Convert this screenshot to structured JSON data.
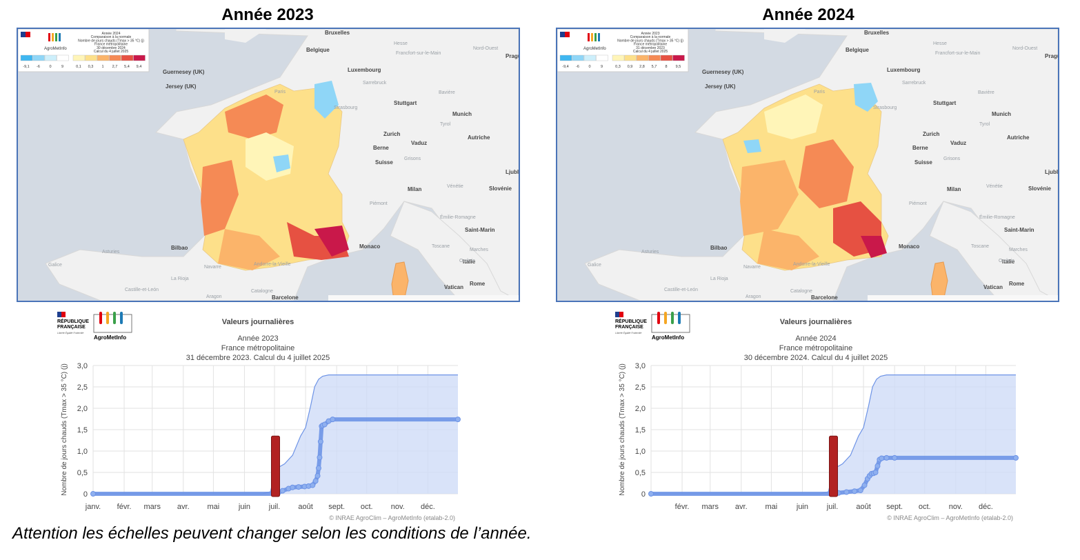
{
  "figure": {
    "footnote": "Attention les échelles peuvent changer selon les conditions de l’année."
  },
  "panels": [
    {
      "heading": "Année 2023",
      "map": {
        "legend_title_lines": [
          "Année 2024",
          "Comparaison à la normale",
          "Nombre de jours chauds (Tmax > 35 °C) (j)",
          "France métropolitaine",
          "30 décembre 2024",
          "Calcul du 4 juillet 2025"
        ],
        "legend_values": [
          "-9,1",
          "-6",
          "0",
          "9",
          "0,1",
          "0,3",
          "1",
          "2,7",
          "5,4",
          "9,4"
        ],
        "legend_colors": [
          "#3fb6f0",
          "#8fd6f7",
          "#cdeffb",
          "#ffffff",
          "#fff5b8",
          "#fde08a",
          "#fbb46a",
          "#f58a55",
          "#e65142",
          "#c9184a"
        ],
        "place_labels": [
          "Bruxelles",
          "Belgique",
          "Luxembourg",
          "Guernesey (UK)",
          "Jersey (UK)",
          "Paris",
          "Stuttgart",
          "Munich",
          "Zurich",
          "Berne",
          "Vaduz",
          "Suisse",
          "Autriche",
          "Milan",
          "Monaco",
          "Bilbao",
          "Italie",
          "Rome",
          "Vatican",
          "Barcelone",
          "Andorre-la-Vieille",
          "Galice",
          "Asturies",
          "Prague",
          "Ljubl",
          "Slovénie",
          "Saint-Marin",
          "Toscane",
          "Marches",
          "Ombrie",
          "Hesse",
          "Francfort-sur-le-Main",
          "Sarrebruck",
          "Strasbourg",
          "Piémont",
          "Navarre",
          "La Rioja",
          "Catalogne",
          "Castille-et-León",
          "Aragon",
          "Nord-Ouest",
          "Bavière",
          "Tyrol",
          "Grisons",
          "Vénétie",
          "Émilie-Romagne"
        ],
        "has_blue_east": true,
        "has_blue_center": true
      },
      "chart": {
        "logo_republic": "RÉPUBLIQUE FRANÇAISE",
        "logo_motto": "Liberté Égalité Fraternité",
        "logo_brand": "AgroMetInfo",
        "title": "Valeurs journalières",
        "subtitle_lines": [
          "Année 2023",
          "France métropolitaine",
          "31 décembre 2023. Calcul du 4 juillet 2025"
        ],
        "ylabel": "Nombre de jours chauds (Tmax > 35 °C) (j)",
        "credit": "© INRAE AgroClim – AgroMetInfo (etalab-2.0)"
      },
      "chart_data": {
        "type": "line",
        "title": "Valeurs journalières",
        "ylabel": "Nombre de jours chauds (Tmax > 35 °C) (j)",
        "ylim": [
          0,
          3
        ],
        "y_ticks": [
          "0",
          "0,5",
          "1,0",
          "1,5",
          "2,0",
          "2,5",
          "3,0"
        ],
        "x_ticks": [
          "janv.",
          "févr.",
          "mars",
          "avr.",
          "mai",
          "juin",
          "juil.",
          "août",
          "sept.",
          "oct.",
          "nov.",
          "déc."
        ],
        "x_range_days": [
          1,
          365
        ],
        "marker_day": 183,
        "series": [
          {
            "name": "",
            "kind": "normal_band",
            "x": [
              1,
              170,
              178,
              183,
              186,
              192,
              200,
              208,
              213,
              218,
              222,
              226,
              230,
              236,
              244,
              365
            ],
            "y": [
              0,
              0,
              0.05,
              0.55,
              0.62,
              0.7,
              0.9,
              1.35,
              1.55,
              2.05,
              2.5,
              2.68,
              2.75,
              2.78,
              2.78,
              2.78
            ]
          },
          {
            "name": "",
            "kind": "daily",
            "x": [
              1,
              184,
              186,
              190,
              196,
              200,
              206,
              212,
              216,
              220,
              223,
              225,
              226,
              227,
              228,
              229,
              230,
              232,
              236,
              240,
              365
            ],
            "y": [
              0,
              0,
              0.03,
              0.07,
              0.12,
              0.15,
              0.16,
              0.17,
              0.18,
              0.2,
              0.3,
              0.42,
              0.6,
              0.85,
              1.22,
              1.58,
              1.6,
              1.62,
              1.7,
              1.74,
              1.74
            ]
          }
        ]
      }
    },
    {
      "heading": "Année 2024",
      "map": {
        "legend_title_lines": [
          "Année 2023",
          "Comparaison à la normale",
          "Nombre de jours chauds (Tmax > 35 °C) (j)",
          "France métropolitaine",
          "31 décembre 2023",
          "Calcul du 4 juillet 2025"
        ],
        "legend_values": [
          "-9,4",
          "-6",
          "0",
          "9",
          "0,3",
          "0,9",
          "2,8",
          "5,7",
          "8",
          "9,5"
        ],
        "legend_colors": [
          "#3fb6f0",
          "#8fd6f7",
          "#cdeffb",
          "#ffffff",
          "#fff5b8",
          "#fde08a",
          "#fbb46a",
          "#f58a55",
          "#e65142",
          "#c9184a"
        ],
        "place_labels": [
          "Bruxelles",
          "Belgique",
          "Luxembourg",
          "Guernesey (UK)",
          "Jersey (UK)",
          "Paris",
          "Stuttgart",
          "Munich",
          "Zurich",
          "Berne",
          "Vaduz",
          "Suisse",
          "Autriche",
          "Milan",
          "Monaco",
          "Bilbao",
          "Italie",
          "Rome",
          "Vatican",
          "Barcelone",
          "Andorre-la-Vieille",
          "Galice",
          "Asturies",
          "Prague",
          "Ljubl",
          "Slovénie",
          "Saint-Marin",
          "Toscane",
          "Marches",
          "Ombrie",
          "Hesse",
          "Francfort-sur-le-Main",
          "Sarrebruck",
          "Strasbourg",
          "Piémont",
          "Navarre",
          "La Rioja",
          "Catalogne",
          "Castille-et-León",
          "Aragon",
          "Nord-Ouest",
          "Bavière",
          "Tyrol",
          "Grisons",
          "Vénétie",
          "Émilie-Romagne"
        ],
        "has_blue_east": true,
        "has_blue_center": false
      },
      "chart": {
        "logo_republic": "RÉPUBLIQUE FRANÇAISE",
        "logo_motto": "Liberté Égalité Fraternité",
        "logo_brand": "AgroMetInfo",
        "title": "Valeurs journalières",
        "subtitle_lines": [
          "Année 2024",
          "France métropolitaine",
          "30 décembre 2024. Calcul du 4 juillet 2025"
        ],
        "ylabel": "Nombre de jours chauds (Tmax > 35 °C) (j)",
        "credit": "© INRAE AgroClim – AgroMetInfo (etalab-2.0)"
      },
      "chart_data": {
        "type": "line",
        "title": "Valeurs journalières",
        "ylabel": "Nombre de jours chauds (Tmax > 35 °C) (j)",
        "ylim": [
          0,
          3
        ],
        "y_ticks": [
          "0",
          "0,5",
          "1,0",
          "1,5",
          "2,0",
          "2,5",
          "3,0"
        ],
        "x_ticks": [
          "",
          "févr.",
          "mars",
          "avr.",
          "mai",
          "juin",
          "juil.",
          "août",
          "sept.",
          "oct.",
          "nov.",
          "déc."
        ],
        "x_range_days": [
          1,
          365
        ],
        "marker_day": 183,
        "series": [
          {
            "name": "",
            "kind": "normal_band",
            "x": [
              1,
              170,
              178,
              183,
              186,
              192,
              200,
              208,
              213,
              218,
              222,
              226,
              230,
              236,
              244,
              365
            ],
            "y": [
              0,
              0,
              0.05,
              0.55,
              0.62,
              0.7,
              0.9,
              1.35,
              1.55,
              2.05,
              2.5,
              2.68,
              2.75,
              2.78,
              2.78,
              2.78
            ]
          },
          {
            "name": "",
            "kind": "daily",
            "x": [
              1,
              184,
              188,
              196,
              204,
              210,
              214,
              217,
              219,
              221,
              223,
              225,
              227,
              229,
              231,
              236,
              244,
              365
            ],
            "y": [
              0,
              0,
              0.02,
              0.04,
              0.06,
              0.08,
              0.2,
              0.35,
              0.42,
              0.47,
              0.48,
              0.5,
              0.65,
              0.8,
              0.83,
              0.84,
              0.84,
              0.84
            ]
          }
        ]
      }
    }
  ]
}
